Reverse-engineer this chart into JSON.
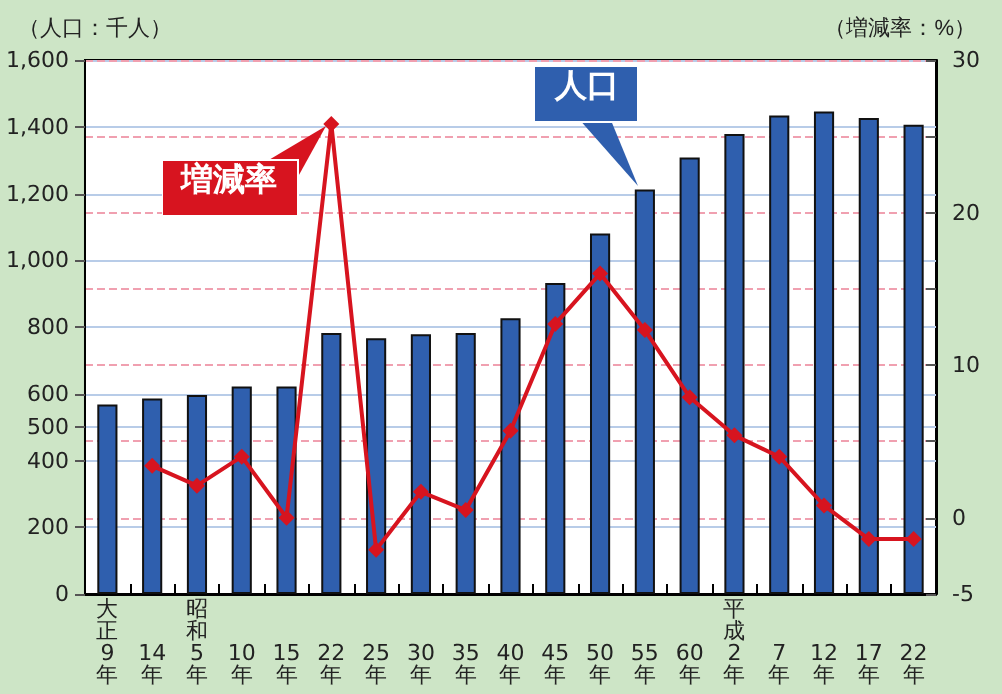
{
  "chart_data": {
    "type": "bar",
    "categories": [
      "大正9年",
      "14年",
      "昭和5年",
      "10年",
      "15年",
      "22年",
      "25年",
      "30年",
      "35年",
      "40年",
      "45年",
      "50年",
      "55年",
      "60年",
      "平成2年",
      "7年",
      "12年",
      "17年",
      "22年"
    ],
    "ylabel": "（人口：千人）",
    "y2label": "（増減率：%）",
    "series": [
      {
        "name": "人口",
        "type": "bar",
        "color": "#2f5fae",
        "values": [
          568,
          586,
          596,
          622,
          622,
          782,
          766,
          778,
          782,
          826,
          932,
          1080,
          1212,
          1308,
          1378,
          1434,
          1446,
          1426,
          1406
        ]
      },
      {
        "name": "増減率",
        "type": "line",
        "axis": "y2",
        "color": "#d7141f",
        "values": [
          null,
          3.4,
          2.1,
          4.0,
          0.0,
          25.8,
          -2.1,
          1.7,
          0.5,
          5.7,
          12.7,
          16.0,
          12.3,
          7.9,
          5.4,
          4.0,
          0.8,
          -1.4,
          -1.4
        ]
      }
    ],
    "ylim": [
      0,
      1600
    ],
    "yticks": [
      0,
      200,
      400,
      500,
      600,
      800,
      {
        "value": 1000,
        "label": "1,000"
      },
      {
        "value": 1200,
        "label": "1,200"
      },
      {
        "value": 1400,
        "label": "1,400"
      },
      {
        "value": 1600,
        "label": "1,600"
      }
    ],
    "y2lim": [
      -5,
      30
    ],
    "y2ticks": [
      -5,
      0,
      {
        "value": 5,
        "label": null
      },
      10,
      {
        "value": 15,
        "label": null
      },
      20,
      {
        "value": 25,
        "label": null
      },
      30
    ],
    "grid": true,
    "legend": false,
    "marker": "diamond",
    "line_style": "solid"
  }
}
